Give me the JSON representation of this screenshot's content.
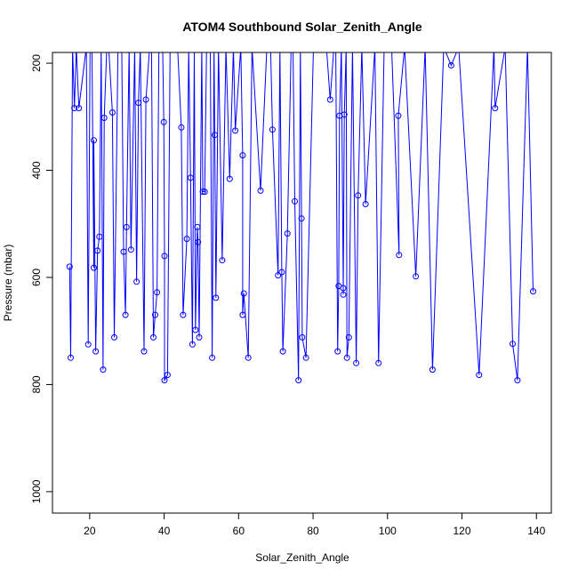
{
  "chart_data": {
    "type": "line",
    "title": "ATOM4 Southbound Solar_Zenith_Angle",
    "xlabel": "Solar_Zenith_Angle",
    "ylabel": "Pressure (mbar)",
    "xlim": [
      10,
      144
    ],
    "ylim": [
      1040,
      180
    ],
    "x_ticks": [
      20,
      40,
      60,
      80,
      100,
      120,
      140
    ],
    "y_ticks": [
      200,
      400,
      600,
      800,
      1000
    ],
    "grid": false,
    "legend": "none",
    "series": [
      {
        "color": "#0000ff",
        "marker": "open-circle",
        "points": [
          [
            14.6,
            580
          ],
          [
            14.9,
            750
          ],
          [
            15.4,
            170
          ],
          [
            15.9,
            284
          ],
          [
            16.4,
            170
          ],
          [
            17.1,
            284
          ],
          [
            19.1,
            170
          ],
          [
            19.6,
            725
          ],
          [
            20.1,
            170
          ],
          [
            20.6,
            170
          ],
          [
            21.1,
            582
          ],
          [
            21.1,
            344
          ],
          [
            21.6,
            738
          ],
          [
            22.1,
            550
          ],
          [
            22.6,
            524
          ],
          [
            23.1,
            170
          ],
          [
            23.6,
            772
          ],
          [
            23.9,
            302
          ],
          [
            24.6,
            170
          ],
          [
            25.1,
            170
          ],
          [
            26.1,
            292
          ],
          [
            26.6,
            712
          ],
          [
            27.6,
            170
          ],
          [
            28.6,
            170
          ],
          [
            29.1,
            552
          ],
          [
            29.6,
            670
          ],
          [
            29.9,
            506
          ],
          [
            30.6,
            170
          ],
          [
            31.1,
            548
          ],
          [
            32.1,
            170
          ],
          [
            32.6,
            608
          ],
          [
            33.1,
            274
          ],
          [
            33.6,
            170
          ],
          [
            34.6,
            738
          ],
          [
            35.1,
            268
          ],
          [
            36.1,
            170
          ],
          [
            36.6,
            170
          ],
          [
            37.1,
            712
          ],
          [
            37.6,
            670
          ],
          [
            38.1,
            628
          ],
          [
            38.6,
            170
          ],
          [
            39.6,
            170
          ],
          [
            39.9,
            310
          ],
          [
            40.1,
            560
          ],
          [
            40.1,
            792
          ],
          [
            40.9,
            782
          ],
          [
            41.6,
            170
          ],
          [
            42.6,
            170
          ],
          [
            43.6,
            170
          ],
          [
            44.6,
            320
          ],
          [
            45.1,
            670
          ],
          [
            46.1,
            528
          ],
          [
            46.6,
            170
          ],
          [
            47.1,
            414
          ],
          [
            47.6,
            725
          ],
          [
            48.1,
            170
          ],
          [
            48.4,
            698
          ],
          [
            48.9,
            506
          ],
          [
            49.1,
            534
          ],
          [
            49.4,
            712
          ],
          [
            50.1,
            170
          ],
          [
            50.4,
            440
          ],
          [
            50.9,
            440
          ],
          [
            51.4,
            170
          ],
          [
            52.4,
            170
          ],
          [
            52.9,
            750
          ],
          [
            53.4,
            170
          ],
          [
            53.6,
            334
          ],
          [
            53.9,
            638
          ],
          [
            54.6,
            170
          ],
          [
            55.6,
            568
          ],
          [
            56.6,
            170
          ],
          [
            57.6,
            416
          ],
          [
            58.6,
            170
          ],
          [
            59.1,
            326
          ],
          [
            60.6,
            170
          ],
          [
            61.1,
            372
          ],
          [
            61.1,
            670
          ],
          [
            61.4,
            630
          ],
          [
            62.6,
            750
          ],
          [
            63.6,
            170
          ],
          [
            65.9,
            438
          ],
          [
            67.6,
            170
          ],
          [
            68.6,
            170
          ],
          [
            69.1,
            324
          ],
          [
            70.6,
            596
          ],
          [
            71.1,
            170
          ],
          [
            71.6,
            590
          ],
          [
            71.9,
            738
          ],
          [
            73.1,
            518
          ],
          [
            74.1,
            170
          ],
          [
            74.6,
            170
          ],
          [
            75.1,
            458
          ],
          [
            76.1,
            792
          ],
          [
            76.6,
            170
          ],
          [
            76.9,
            490
          ],
          [
            77.1,
            712
          ],
          [
            78.1,
            750
          ],
          [
            80.1,
            170
          ],
          [
            82.1,
            170
          ],
          [
            83.6,
            170
          ],
          [
            84.6,
            268
          ],
          [
            85.6,
            170
          ],
          [
            86.1,
            170
          ],
          [
            86.6,
            738
          ],
          [
            86.9,
            616
          ],
          [
            87.1,
            298
          ],
          [
            87.6,
            170
          ],
          [
            88.1,
            620
          ],
          [
            88.1,
            632
          ],
          [
            88.4,
            296
          ],
          [
            88.9,
            170
          ],
          [
            89.1,
            750
          ],
          [
            89.6,
            712
          ],
          [
            90.6,
            170
          ],
          [
            91.6,
            760
          ],
          [
            92.1,
            447
          ],
          [
            93.1,
            170
          ],
          [
            94.1,
            463
          ],
          [
            96.6,
            170
          ],
          [
            97.6,
            760
          ],
          [
            99.1,
            170
          ],
          [
            101.1,
            170
          ],
          [
            103.1,
            558
          ],
          [
            102.9,
            298
          ],
          [
            104.6,
            170
          ],
          [
            107.6,
            598
          ],
          [
            110.1,
            170
          ],
          [
            112.1,
            772
          ],
          [
            115.1,
            170
          ],
          [
            117.1,
            204
          ],
          [
            119.1,
            170
          ],
          [
            124.6,
            782
          ],
          [
            128.6,
            170
          ],
          [
            128.9,
            284
          ],
          [
            131.6,
            170
          ],
          [
            133.6,
            724
          ],
          [
            134.9,
            792
          ],
          [
            137.6,
            170
          ],
          [
            139.1,
            626
          ]
        ]
      }
    ]
  }
}
